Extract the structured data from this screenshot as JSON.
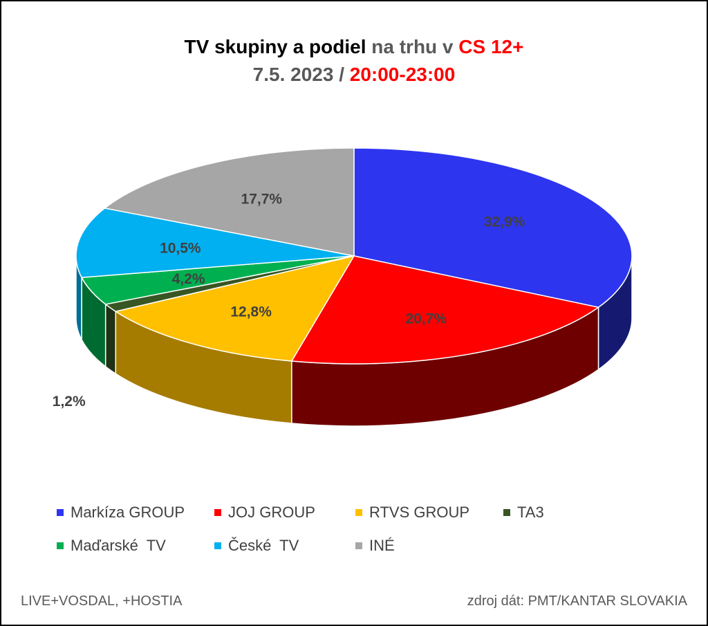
{
  "title": {
    "line1_part1": "TV skupiny a podiel ",
    "line1_part2": "na trhu v ",
    "line1_part3": "CS 12+",
    "line2_part1": "7.5. 2023 / ",
    "line2_part2": "20:00-23:00"
  },
  "colors": {
    "title_black": "#000000",
    "title_gray": "#595959",
    "title_red": "#ff0000"
  },
  "chart_data": {
    "type": "pie",
    "style": "3d",
    "slices": [
      {
        "label": "Markíza GROUP",
        "value": 32.9,
        "display": "32,9%",
        "color": "#2e35ef",
        "side_color": "#151a70"
      },
      {
        "label": "JOJ GROUP",
        "value": 20.7,
        "display": "20,7%",
        "color": "#ff0000",
        "side_color": "#6e0000"
      },
      {
        "label": "RTVS GROUP",
        "value": 12.8,
        "display": "12,8%",
        "color": "#ffc000",
        "side_color": "#a57c00"
      },
      {
        "label": "TA3",
        "value": 1.2,
        "display": "1,2%",
        "color": "#375623",
        "side_color": "#1f3214"
      },
      {
        "label": "Maďarské  TV",
        "value": 4.2,
        "display": "4,2%",
        "color": "#00b050",
        "side_color": "#006b30"
      },
      {
        "label": "České  TV",
        "value": 10.5,
        "display": "10,5%",
        "color": "#00b0f0",
        "side_color": "#006e96"
      },
      {
        "label": "INÉ",
        "value": 17.7,
        "display": "17,7%",
        "color": "#a6a6a6",
        "side_color": "#6a6a6a"
      }
    ],
    "legend_position": "bottom"
  },
  "footer": {
    "left": "LIVE+VOSDAL, +HOSTIA",
    "right": "zdroj dát: PMT/KANTAR SLOVAKIA"
  }
}
